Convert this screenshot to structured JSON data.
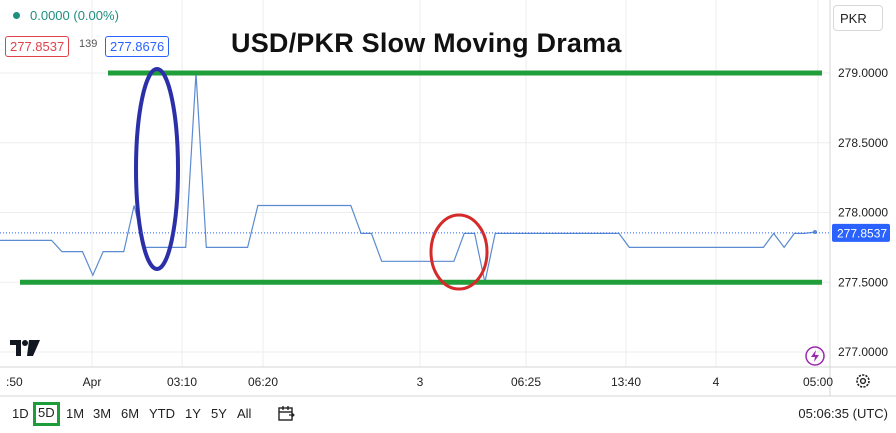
{
  "header": {
    "change": "0.0000 (0.00%)",
    "bid": "277.8537",
    "spread": "139",
    "ask": "277.8676",
    "currency": "PKR"
  },
  "title": "USD/PKR Slow Moving Drama",
  "toolbar": {
    "timeframes": [
      "1D",
      "5D",
      "1M",
      "3M",
      "6M",
      "YTD",
      "1Y",
      "5Y",
      "All"
    ],
    "active_timeframe": "5D",
    "clock": "05:06:35 (UTC)"
  },
  "colors": {
    "line": "#5b8bd0",
    "support": "#1f9e3a",
    "last_price_bg": "#2962ff",
    "up": "#1f8f7e",
    "down": "#e0434b"
  },
  "chart_data": {
    "type": "line",
    "ylim": [
      276.9,
      279.2
    ],
    "y_ticks": [
      277.0,
      277.5,
      278.0,
      278.5,
      279.0
    ],
    "y_tick_labels": [
      "277.0000",
      "277.5000",
      "278.0000",
      "278.5000",
      "279.0000"
    ],
    "x_tick_labels": [
      ":50",
      "Apr",
      "03:10",
      "06:20",
      "3",
      "06:25",
      "13:40",
      "4",
      "05:00"
    ],
    "last_price": 277.8537,
    "last_price_label": "277.8537",
    "series": [
      {
        "values": [
          277.8,
          277.8,
          277.8,
          277.8,
          277.8,
          277.8,
          277.72,
          277.72,
          277.72,
          277.55,
          277.72,
          277.72,
          277.72,
          278.05,
          277.75,
          277.75,
          277.75,
          277.75,
          277.75,
          279.0,
          277.75,
          277.75,
          277.75,
          277.75,
          277.75,
          278.05,
          278.05,
          278.05,
          278.05,
          278.05,
          278.05,
          278.05,
          278.05,
          278.05,
          278.05,
          277.85,
          277.85,
          277.65,
          277.65,
          277.65,
          277.65,
          277.65,
          277.65,
          277.65,
          277.65,
          277.85,
          277.85,
          277.5,
          277.85,
          277.85,
          277.85,
          277.85,
          277.85,
          277.85,
          277.85,
          277.85,
          277.85,
          277.85,
          277.85,
          277.85,
          277.85,
          277.75,
          277.75,
          277.75,
          277.75,
          277.75,
          277.75,
          277.75,
          277.75,
          277.75,
          277.75,
          277.75,
          277.75,
          277.75,
          277.75,
          277.85,
          277.75,
          277.85,
          277.85,
          277.86
        ]
      }
    ],
    "support_levels": [
      279.0,
      277.5
    ]
  }
}
